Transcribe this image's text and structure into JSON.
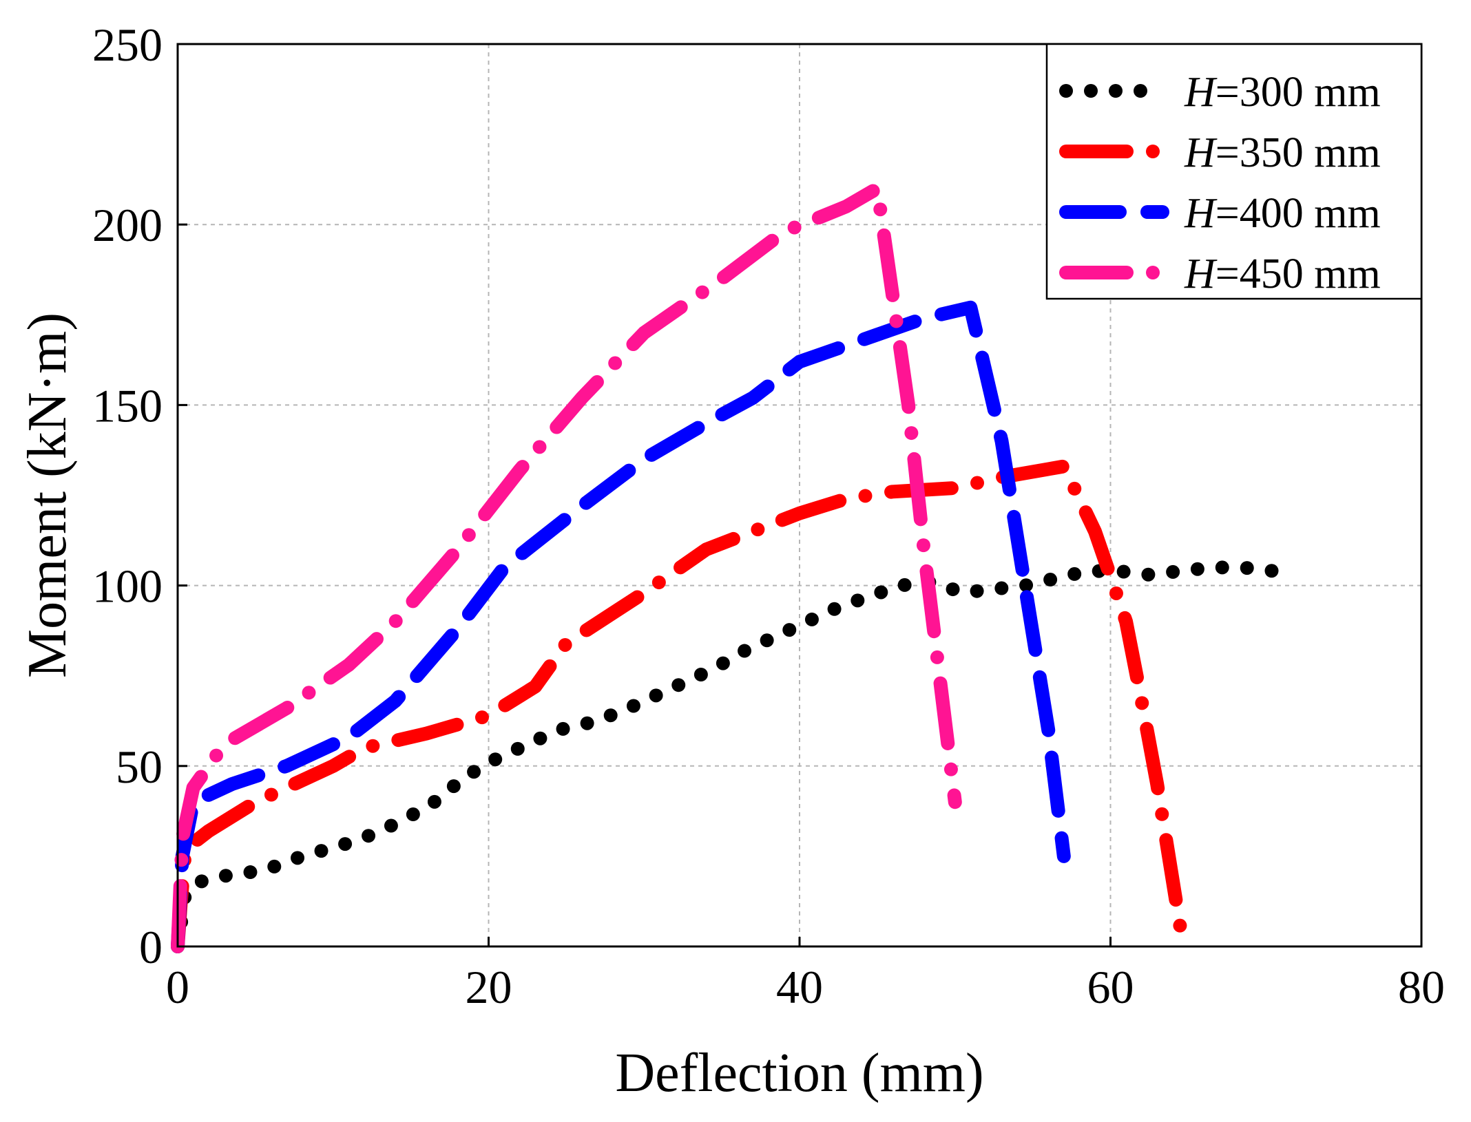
{
  "chart_data": {
    "type": "line",
    "title": "",
    "xlabel": "Deflection (mm)",
    "ylabel": "Moment (kN·m)",
    "xlim": [
      0,
      80
    ],
    "ylim": [
      0,
      250
    ],
    "xticks": [
      0,
      20,
      40,
      60,
      80
    ],
    "yticks": [
      0,
      50,
      100,
      150,
      200,
      250
    ],
    "grid": true,
    "legend_position": "top-right",
    "series": [
      {
        "name": "H=300 mm",
        "label_var": "H",
        "label_rest": "=300 mm",
        "color": "#000000",
        "style": "dotted",
        "x": [
          0,
          0.5,
          1.5,
          3.5,
          5.5,
          8,
          10.5,
          12.5,
          14.5,
          16.5,
          18.5,
          20.5,
          22.5,
          24.5,
          26.5,
          28.5,
          30.5,
          32.5,
          34.5,
          36.5,
          38.5,
          40.5,
          42.5,
          44.5,
          46.5,
          48.5,
          50.5,
          52.5,
          54.5,
          56.5,
          58.5,
          60.5,
          62.5,
          64.5,
          66.5,
          68.5,
          70.5
        ],
        "y": [
          0,
          15,
          18,
          20,
          21,
          25,
          28,
          31,
          35,
          40,
          47,
          52,
          56,
          60,
          62,
          65,
          69,
          73,
          77,
          82,
          86,
          90,
          94,
          97,
          100,
          101,
          98,
          99,
          100,
          102,
          104,
          104,
          103,
          104,
          105,
          105,
          104
        ]
      },
      {
        "name": "H=350 mm",
        "label_var": "H",
        "label_rest": "=350 mm",
        "color": "#ff0000",
        "style": "dash-dot",
        "x": [
          0,
          0.2,
          0.5,
          2,
          5,
          10,
          12,
          16,
          20,
          23,
          25,
          30,
          34,
          40,
          43,
          46,
          50,
          53,
          57,
          59,
          61,
          62,
          63,
          64.5
        ],
        "y": [
          0,
          12,
          27,
          32,
          40,
          50,
          55,
          59,
          64,
          72,
          84,
          98,
          110,
          120,
          124,
          126,
          127,
          130,
          133,
          115,
          90,
          68,
          45,
          5
        ]
      },
      {
        "name": "H=400 mm",
        "label_var": "H",
        "label_rest": "=400 mm",
        "color": "#0000ff",
        "style": "dashed",
        "x": [
          0,
          0.3,
          1,
          3.5,
          7,
          11,
          14,
          18,
          21,
          26,
          30,
          34,
          37,
          40,
          44,
          48,
          51,
          53,
          54.5,
          56,
          57
        ],
        "y": [
          0,
          25,
          40,
          45,
          50,
          58,
          68,
          88,
          105,
          122,
          135,
          145,
          152,
          162,
          168,
          174,
          177,
          140,
          100,
          60,
          25
        ]
      },
      {
        "name": "H=450 mm",
        "label_var": "H",
        "label_rest": "=450 mm",
        "color": "#ff1493",
        "style": "dash-dot",
        "x": [
          0,
          0.3,
          1,
          3,
          7,
          11,
          14,
          18,
          22,
          26,
          30,
          35,
          39,
          43,
          45,
          47,
          48,
          49,
          50
        ],
        "y": [
          0,
          30,
          44,
          56,
          66,
          78,
          90,
          110,
          132,
          152,
          170,
          185,
          198,
          205,
          210,
          150,
          110,
          75,
          40
        ]
      }
    ]
  }
}
